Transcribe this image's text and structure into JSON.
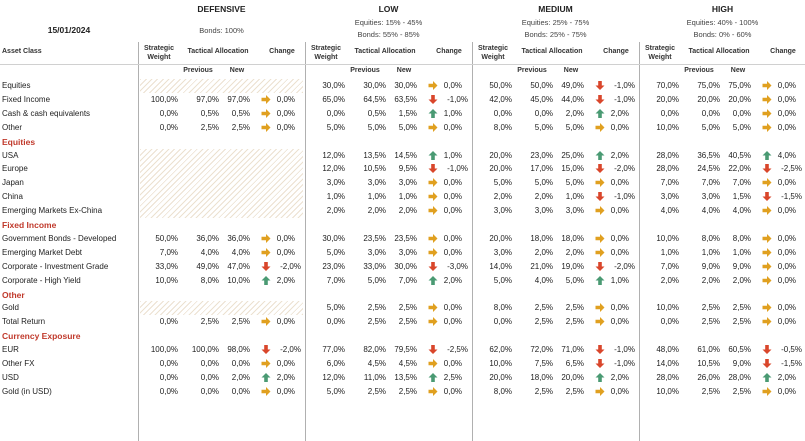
{
  "date": "15/01/2024",
  "profiles": [
    {
      "title": "DEFENSIVE",
      "sub1": "Bonds: 100%",
      "sub2": ""
    },
    {
      "title": "LOW",
      "sub1": "Equities: 15% - 45%",
      "sub2": "Bonds: 55% - 85%"
    },
    {
      "title": "MEDIUM",
      "sub1": "Equities: 25% - 75%",
      "sub2": "Bonds: 25% - 75%"
    },
    {
      "title": "HIGH",
      "sub1": "Equities: 40% - 100%",
      "sub2": "Bonds: 0% - 60%"
    }
  ],
  "headers": {
    "asset_class": "Asset Class",
    "strategic1": "Strategic",
    "strategic2": "Weight",
    "tactical": "Tactical Allocation",
    "previous": "Previous",
    "new": "New",
    "change": "Change"
  },
  "colors": {
    "section": "#c0392b",
    "up": "#4a9a73",
    "down": "#d9462b",
    "flat": "#e0a020"
  },
  "rows": [
    {
      "type": "row",
      "label": "Equities",
      "vals": [
        [
          "",
          "",
          "",
          ""
        ],
        [
          "30,0%",
          "30,0%",
          "30,0%",
          "0,0%"
        ],
        [
          "50,0%",
          "50,0%",
          "49,0%",
          "-1,0%"
        ],
        [
          "70,0%",
          "75,0%",
          "75,0%",
          "0,0%"
        ]
      ]
    },
    {
      "type": "row",
      "label": "Fixed Income",
      "vals": [
        [
          "100,0%",
          "97,0%",
          "97,0%",
          "0,0%"
        ],
        [
          "65,0%",
          "64,5%",
          "63,5%",
          "-1,0%"
        ],
        [
          "42,0%",
          "45,0%",
          "44,0%",
          "-1,0%"
        ],
        [
          "20,0%",
          "20,0%",
          "20,0%",
          "0,0%"
        ]
      ]
    },
    {
      "type": "row",
      "label": "Cash & cash equivalents",
      "vals": [
        [
          "0,0%",
          "0,5%",
          "0,5%",
          "0,0%"
        ],
        [
          "0,0%",
          "0,5%",
          "1,5%",
          "1,0%"
        ],
        [
          "0,0%",
          "0,0%",
          "2,0%",
          "2,0%"
        ],
        [
          "0,0%",
          "0,0%",
          "0,0%",
          "0,0%"
        ]
      ]
    },
    {
      "type": "row",
      "label": "Other",
      "vals": [
        [
          "0,0%",
          "2,5%",
          "2,5%",
          "0,0%"
        ],
        [
          "5,0%",
          "5,0%",
          "5,0%",
          "0,0%"
        ],
        [
          "8,0%",
          "5,0%",
          "5,0%",
          "0,0%"
        ],
        [
          "10,0%",
          "5,0%",
          "5,0%",
          "0,0%"
        ]
      ]
    },
    {
      "type": "section",
      "label": "Equities"
    },
    {
      "type": "row",
      "label": "USA",
      "vals": [
        [
          "",
          "",
          "",
          ""
        ],
        [
          "12,0%",
          "13,5%",
          "14,5%",
          "1,0%"
        ],
        [
          "20,0%",
          "23,0%",
          "25,0%",
          "2,0%"
        ],
        [
          "28,0%",
          "36,5%",
          "40,5%",
          "4,0%"
        ]
      ]
    },
    {
      "type": "row",
      "label": "Europe",
      "vals": [
        [
          "",
          "",
          "",
          ""
        ],
        [
          "12,0%",
          "10,5%",
          "9,5%",
          "-1,0%"
        ],
        [
          "20,0%",
          "17,0%",
          "15,0%",
          "-2,0%"
        ],
        [
          "28,0%",
          "24,5%",
          "22,0%",
          "-2,5%"
        ]
      ]
    },
    {
      "type": "row",
      "label": "Japan",
      "vals": [
        [
          "",
          "",
          "",
          ""
        ],
        [
          "3,0%",
          "3,0%",
          "3,0%",
          "0,0%"
        ],
        [
          "5,0%",
          "5,0%",
          "5,0%",
          "0,0%"
        ],
        [
          "7,0%",
          "7,0%",
          "7,0%",
          "0,0%"
        ]
      ]
    },
    {
      "type": "row",
      "label": "China",
      "vals": [
        [
          "",
          "",
          "",
          ""
        ],
        [
          "1,0%",
          "1,0%",
          "1,0%",
          "0,0%"
        ],
        [
          "2,0%",
          "2,0%",
          "1,0%",
          "-1,0%"
        ],
        [
          "3,0%",
          "3,0%",
          "1,5%",
          "-1,5%"
        ]
      ]
    },
    {
      "type": "row",
      "label": "Emerging Markets Ex-China",
      "vals": [
        [
          "",
          "",
          "",
          ""
        ],
        [
          "2,0%",
          "2,0%",
          "2,0%",
          "0,0%"
        ],
        [
          "3,0%",
          "3,0%",
          "3,0%",
          "0,0%"
        ],
        [
          "4,0%",
          "4,0%",
          "4,0%",
          "0,0%"
        ]
      ]
    },
    {
      "type": "section",
      "label": "Fixed Income"
    },
    {
      "type": "row",
      "label": "Government Bonds - Developed",
      "vals": [
        [
          "50,0%",
          "36,0%",
          "36,0%",
          "0,0%"
        ],
        [
          "30,0%",
          "23,5%",
          "23,5%",
          "0,0%"
        ],
        [
          "20,0%",
          "18,0%",
          "18,0%",
          "0,0%"
        ],
        [
          "10,0%",
          "8,0%",
          "8,0%",
          "0,0%"
        ]
      ]
    },
    {
      "type": "row",
      "label": "Emerging Market Debt",
      "vals": [
        [
          "7,0%",
          "4,0%",
          "4,0%",
          "0,0%"
        ],
        [
          "5,0%",
          "3,0%",
          "3,0%",
          "0,0%"
        ],
        [
          "3,0%",
          "2,0%",
          "2,0%",
          "0,0%"
        ],
        [
          "1,0%",
          "1,0%",
          "1,0%",
          "0,0%"
        ]
      ]
    },
    {
      "type": "row",
      "label": "Corporate - Investment Grade",
      "vals": [
        [
          "33,0%",
          "49,0%",
          "47,0%",
          "-2,0%"
        ],
        [
          "23,0%",
          "33,0%",
          "30,0%",
          "-3,0%"
        ],
        [
          "14,0%",
          "21,0%",
          "19,0%",
          "-2,0%"
        ],
        [
          "7,0%",
          "9,0%",
          "9,0%",
          "0,0%"
        ]
      ]
    },
    {
      "type": "row",
      "label": "Corporate - High Yield",
      "vals": [
        [
          "10,0%",
          "8,0%",
          "10,0%",
          "2,0%"
        ],
        [
          "7,0%",
          "5,0%",
          "7,0%",
          "2,0%"
        ],
        [
          "5,0%",
          "4,0%",
          "5,0%",
          "1,0%"
        ],
        [
          "2,0%",
          "2,0%",
          "2,0%",
          "0,0%"
        ]
      ]
    },
    {
      "type": "section",
      "label": "Other"
    },
    {
      "type": "row",
      "label": "Gold",
      "vals": [
        [
          "",
          "",
          "",
          ""
        ],
        [
          "5,0%",
          "2,5%",
          "2,5%",
          "0,0%"
        ],
        [
          "8,0%",
          "2,5%",
          "2,5%",
          "0,0%"
        ],
        [
          "10,0%",
          "2,5%",
          "2,5%",
          "0,0%"
        ]
      ]
    },
    {
      "type": "row",
      "label": "Total Return",
      "vals": [
        [
          "0,0%",
          "2,5%",
          "2,5%",
          "0,0%"
        ],
        [
          "0,0%",
          "2,5%",
          "2,5%",
          "0,0%"
        ],
        [
          "0,0%",
          "2,5%",
          "2,5%",
          "0,0%"
        ],
        [
          "0,0%",
          "2,5%",
          "2,5%",
          "0,0%"
        ]
      ]
    },
    {
      "type": "section",
      "label": "Currency Exposure"
    },
    {
      "type": "row",
      "label": "EUR",
      "vals": [
        [
          "100,0%",
          "100,0%",
          "98,0%",
          "-2,0%"
        ],
        [
          "77,0%",
          "82,0%",
          "79,5%",
          "-2,5%"
        ],
        [
          "62,0%",
          "72,0%",
          "71,0%",
          "-1,0%"
        ],
        [
          "48,0%",
          "61,0%",
          "60,5%",
          "-0,5%"
        ]
      ]
    },
    {
      "type": "row",
      "label": "Other FX",
      "vals": [
        [
          "0,0%",
          "0,0%",
          "0,0%",
          "0,0%"
        ],
        [
          "6,0%",
          "4,5%",
          "4,5%",
          "0,0%"
        ],
        [
          "10,0%",
          "7,5%",
          "6,5%",
          "-1,0%"
        ],
        [
          "14,0%",
          "10,5%",
          "9,0%",
          "-1,5%"
        ]
      ]
    },
    {
      "type": "row",
      "label": "USD",
      "vals": [
        [
          "0,0%",
          "0,0%",
          "2,0%",
          "2,0%"
        ],
        [
          "12,0%",
          "11,0%",
          "13,5%",
          "2,5%"
        ],
        [
          "20,0%",
          "18,0%",
          "20,0%",
          "2,0%"
        ],
        [
          "28,0%",
          "26,0%",
          "28,0%",
          "2,0%"
        ]
      ]
    },
    {
      "type": "row",
      "label": "Gold (in USD)",
      "vals": [
        [
          "0,0%",
          "0,0%",
          "0,0%",
          "0,0%"
        ],
        [
          "5,0%",
          "2,5%",
          "2,5%",
          "0,0%"
        ],
        [
          "8,0%",
          "2,5%",
          "2,5%",
          "0,0%"
        ],
        [
          "10,0%",
          "2,5%",
          "2,5%",
          "0,0%"
        ]
      ]
    }
  ]
}
